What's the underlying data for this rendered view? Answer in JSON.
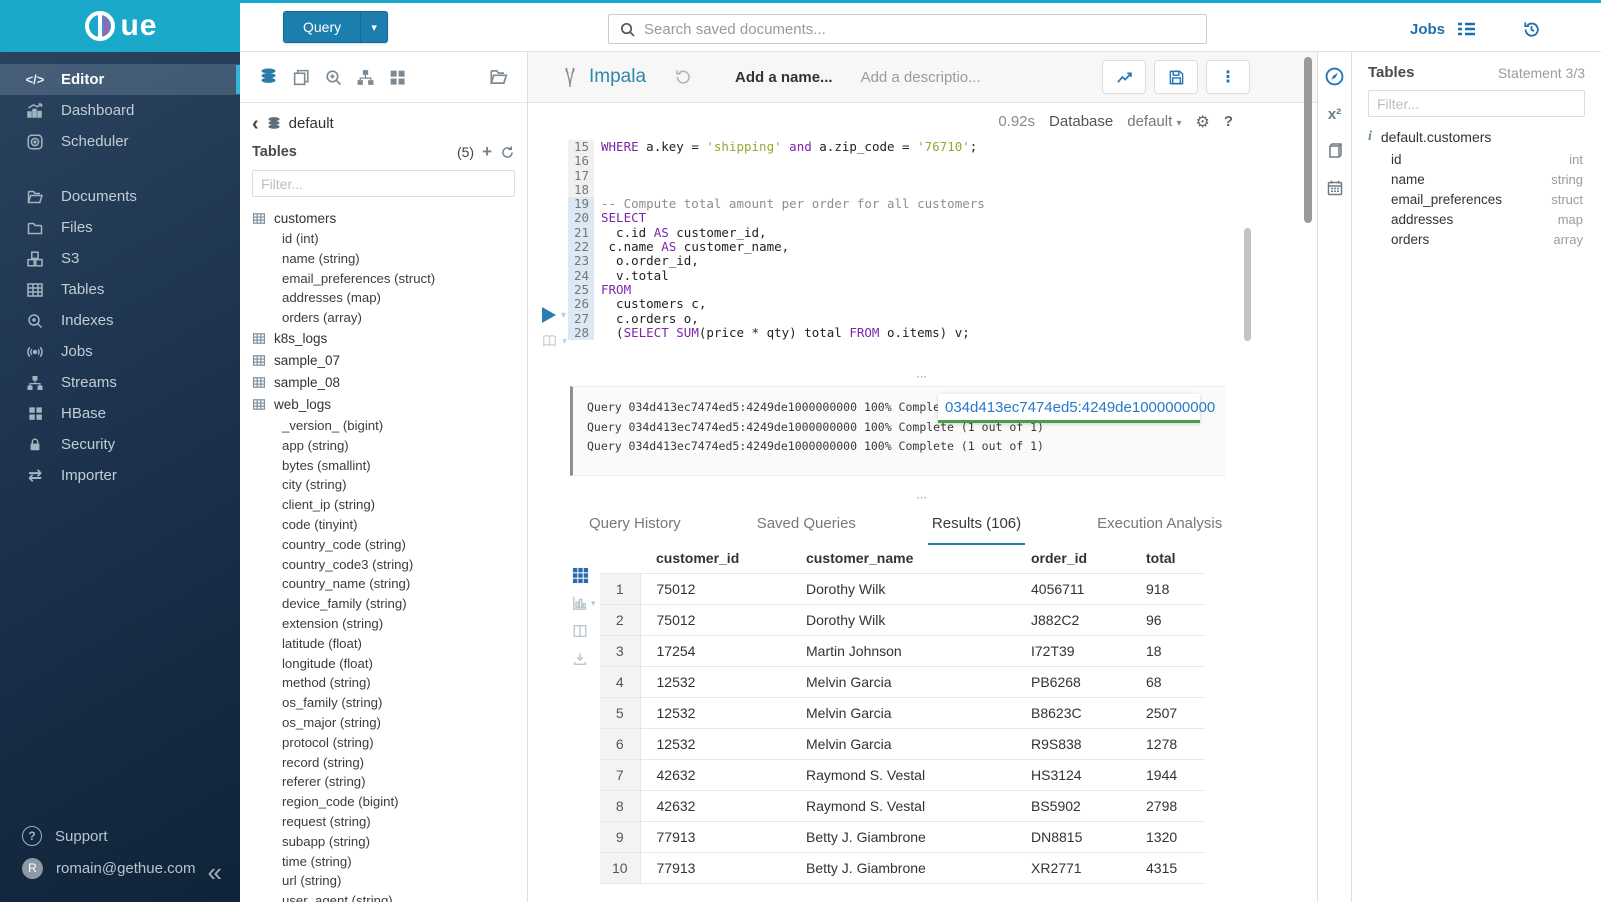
{
  "brand": {
    "logo_text": "ue",
    "accent_color": "#1ba9cb"
  },
  "topbar": {
    "query_label": "Query",
    "search_placeholder": "Search saved documents...",
    "jobs_label": "Jobs"
  },
  "sidebar": {
    "items": [
      {
        "label": "Editor",
        "icon": "code-icon",
        "active": true
      },
      {
        "label": "Dashboard",
        "icon": "dashboard-icon"
      },
      {
        "label": "Scheduler",
        "icon": "scheduler-icon"
      },
      {
        "label": "Documents",
        "icon": "documents-icon",
        "gap_before": true
      },
      {
        "label": "Files",
        "icon": "folder-icon"
      },
      {
        "label": "S3",
        "icon": "cubes-icon"
      },
      {
        "label": "Tables",
        "icon": "table-icon"
      },
      {
        "label": "Indexes",
        "icon": "search-plus-icon"
      },
      {
        "label": "Jobs",
        "icon": "broadcast-icon"
      },
      {
        "label": "Streams",
        "icon": "sitemap-icon"
      },
      {
        "label": "HBase",
        "icon": "blocks-icon"
      },
      {
        "label": "Security",
        "icon": "lock-icon"
      },
      {
        "label": "Importer",
        "icon": "transfer-icon"
      }
    ],
    "support_label": "Support",
    "user_email": "romain@gethue.com",
    "avatar_letter": "R"
  },
  "assist": {
    "breadcrumb": "default",
    "title": "Tables",
    "count": "(5)",
    "filter_placeholder": "Filter...",
    "tree": [
      {
        "name": "customers",
        "columns": [
          "id (int)",
          "name (string)",
          "email_preferences (struct)",
          "addresses (map)",
          "orders (array)"
        ]
      },
      {
        "name": "k8s_logs",
        "columns": []
      },
      {
        "name": "sample_07",
        "columns": []
      },
      {
        "name": "sample_08",
        "columns": []
      },
      {
        "name": "web_logs",
        "columns": [
          "_version_ (bigint)",
          "app (string)",
          "bytes (smallint)",
          "city (string)",
          "client_ip (string)",
          "code (tinyint)",
          "country_code (string)",
          "country_code3 (string)",
          "country_name (string)",
          "device_family (string)",
          "extension (string)",
          "latitude (float)",
          "longitude (float)",
          "method (string)",
          "os_family (string)",
          "os_major (string)",
          "protocol (string)",
          "record (string)",
          "referer (string)",
          "region_code (bigint)",
          "request (string)",
          "subapp (string)",
          "time (string)",
          "url (string)",
          "user_agent (string)"
        ]
      }
    ]
  },
  "editor": {
    "engine": "Impala",
    "name_placeholder": "Add a name...",
    "desc_placeholder": "Add a descriptio...",
    "exec_time": "0.92s",
    "db_label": "Database",
    "db_value": "default",
    "lines": [
      {
        "n": "15",
        "act": false,
        "t": [
          [
            "k",
            "WHERE"
          ],
          [
            "p",
            " a.key = "
          ],
          [
            "s",
            "'shipping'"
          ],
          [
            "p",
            " "
          ],
          [
            "k",
            "and"
          ],
          [
            "p",
            " a.zip_code = "
          ],
          [
            "s",
            "'76710'"
          ],
          [
            "p",
            ";"
          ]
        ]
      },
      {
        "n": "16",
        "act": false,
        "t": []
      },
      {
        "n": "17",
        "act": false,
        "t": []
      },
      {
        "n": "18",
        "act": false,
        "t": []
      },
      {
        "n": "19",
        "act": true,
        "t": [
          [
            "c",
            "-- Compute total amount per order for all customers"
          ]
        ]
      },
      {
        "n": "20",
        "act": true,
        "t": [
          [
            "k",
            "SELECT"
          ]
        ]
      },
      {
        "n": "21",
        "act": true,
        "t": [
          [
            "p",
            "  c.id "
          ],
          [
            "k",
            "AS"
          ],
          [
            "p",
            " customer_id,"
          ]
        ]
      },
      {
        "n": "22",
        "act": true,
        "t": [
          [
            "p",
            " c.name "
          ],
          [
            "k",
            "AS"
          ],
          [
            "p",
            " customer_name,"
          ]
        ]
      },
      {
        "n": "23",
        "act": true,
        "t": [
          [
            "p",
            "  o.order_id,"
          ]
        ]
      },
      {
        "n": "24",
        "act": true,
        "t": [
          [
            "p",
            "  v.total"
          ]
        ]
      },
      {
        "n": "25",
        "act": true,
        "t": [
          [
            "k",
            "FROM"
          ]
        ]
      },
      {
        "n": "26",
        "act": true,
        "t": [
          [
            "p",
            "  customers c,"
          ]
        ]
      },
      {
        "n": "27",
        "act": true,
        "t": [
          [
            "p",
            "  c.orders o,"
          ]
        ]
      },
      {
        "n": "28",
        "act": true,
        "t": [
          [
            "p",
            "  ("
          ],
          [
            "k",
            "SELECT"
          ],
          [
            "p",
            " "
          ],
          [
            "k",
            "SUM"
          ],
          [
            "p",
            "(price * qty) total "
          ],
          [
            "k",
            "FROM"
          ],
          [
            "p",
            " o.items) v;"
          ]
        ]
      }
    ]
  },
  "logs": {
    "lines": [
      "Query 034d413ec7474ed5:4249de1000000000 100% Complete (1 out of 1)",
      "Query 034d413ec7474ed5:4249de1000000000 100% Complete (1 out of 1)",
      "Query 034d413ec7474ed5:4249de1000000000 100% Complete (1 out of 1)"
    ],
    "query_id_tooltip": "034d413ec7474ed5:4249de1000000000"
  },
  "tabs": {
    "items": [
      "Query History",
      "Saved Queries",
      "Results (106)",
      "Execution Analysis"
    ],
    "active_index": 2
  },
  "results": {
    "columns": [
      "customer_id",
      "customer_name",
      "order_id",
      "total"
    ],
    "rows": [
      [
        "1",
        "75012",
        "Dorothy Wilk",
        "4056711",
        "918"
      ],
      [
        "2",
        "75012",
        "Dorothy Wilk",
        "J882C2",
        "96"
      ],
      [
        "3",
        "17254",
        "Martin Johnson",
        "I72T39",
        "18"
      ],
      [
        "4",
        "12532",
        "Melvin Garcia",
        "PB6268",
        "68"
      ],
      [
        "5",
        "12532",
        "Melvin Garcia",
        "B8623C",
        "2507"
      ],
      [
        "6",
        "12532",
        "Melvin Garcia",
        "R9S838",
        "1278"
      ],
      [
        "7",
        "42632",
        "Raymond S. Vestal",
        "HS3124",
        "1944"
      ],
      [
        "8",
        "42632",
        "Raymond S. Vestal",
        "BS5902",
        "2798"
      ],
      [
        "9",
        "77913",
        "Betty J. Giambrone",
        "DN8815",
        "1320"
      ],
      [
        "10",
        "77913",
        "Betty J. Giambrone",
        "XR2771",
        "4315"
      ]
    ]
  },
  "right_panel": {
    "title": "Tables",
    "statement": "Statement 3/3",
    "filter_placeholder": "Filter...",
    "table_name": "default.customers",
    "columns": [
      {
        "name": "id",
        "type": "int"
      },
      {
        "name": "name",
        "type": "string"
      },
      {
        "name": "email_preferences",
        "type": "struct"
      },
      {
        "name": "addresses",
        "type": "map"
      },
      {
        "name": "orders",
        "type": "array"
      }
    ]
  }
}
